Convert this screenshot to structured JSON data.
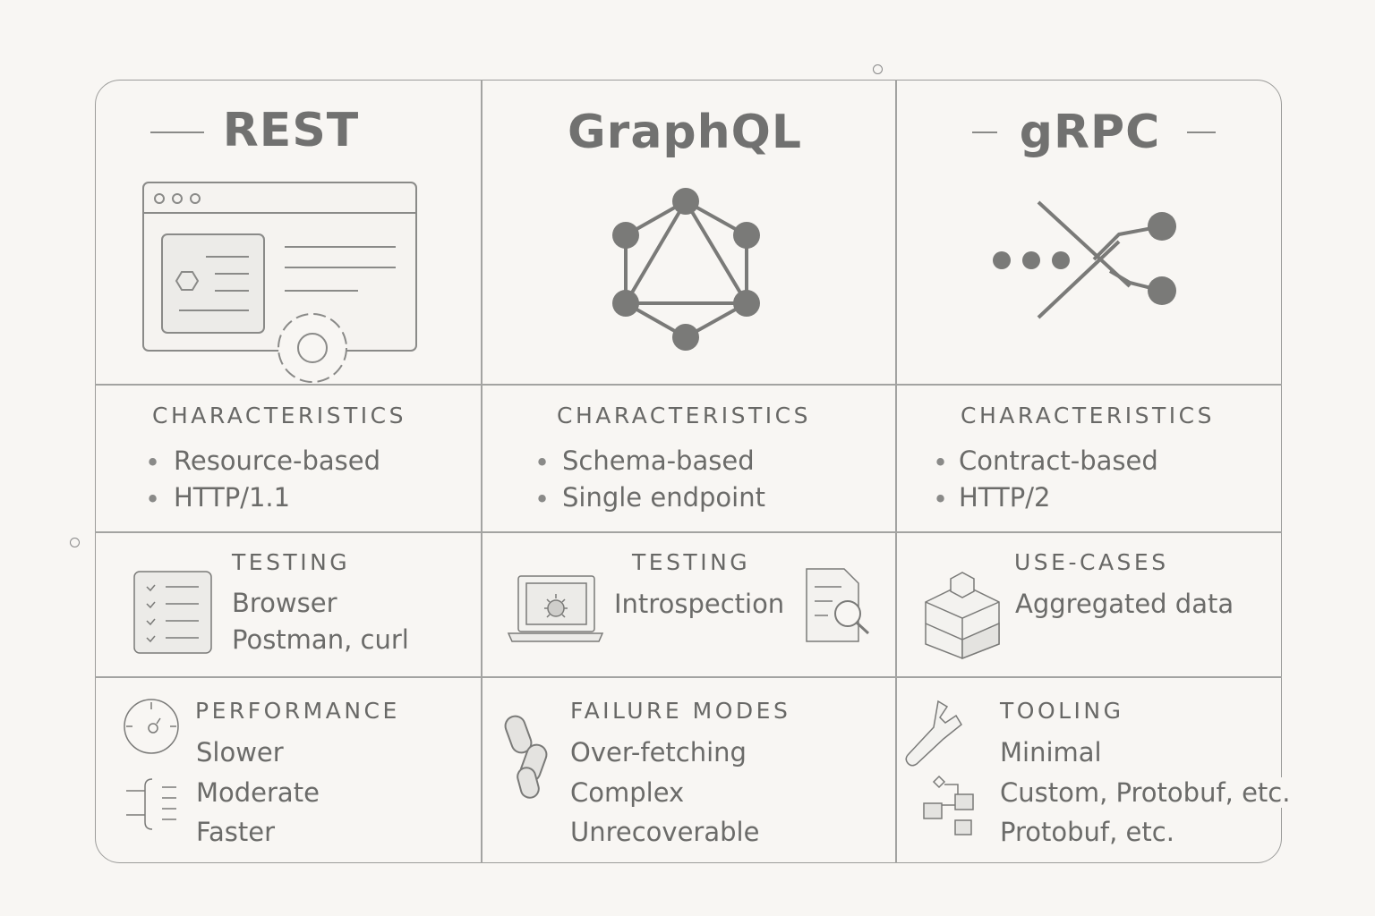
{
  "columns": [
    {
      "title": "REST",
      "icon": "browser-window-gear-icon"
    },
    {
      "title": "GraphQL",
      "icon": "graphql-logo-icon"
    },
    {
      "title": "gRPC",
      "icon": "grpc-arrows-icon"
    }
  ],
  "characteristics": {
    "label": "CHARACTERISTICS",
    "rest": [
      "Resource-based",
      "HTTP/1.1"
    ],
    "graphql": [
      "Schema-based",
      "Single endpoint"
    ],
    "grpc": [
      "Contract-based",
      "HTTP/2"
    ]
  },
  "row3": {
    "rest": {
      "label": "TESTING",
      "items": [
        "Browser",
        "Postman, curl"
      ],
      "icon": "checklist-icon"
    },
    "graphql": {
      "label": "TESTING",
      "items": [
        "Introspection"
      ],
      "icon": "laptop-bug-icon"
    },
    "grpc": {
      "label": "USE-CASES",
      "items": [
        "Aggregated data"
      ],
      "icon": "stacked-boxes-icon"
    }
  },
  "row4": {
    "rest": {
      "label": "PERFORMANCE",
      "items": [
        "Slower",
        "Moderate",
        "Faster"
      ],
      "icon": "gauge-icon"
    },
    "graphql": {
      "label": "FAILURE MODES",
      "items": [
        "Over-fetching",
        "Complex",
        "Unrecoverable"
      ],
      "icon": "broken-chain-icon"
    },
    "grpc": {
      "label": "TOOLING",
      "items": [
        "Minimal",
        "Custom, Protobuf, etc.",
        "Protobuf, etc."
      ],
      "icon": "wrench-icon"
    }
  },
  "colors": {
    "background": "#f8f6f3",
    "line": "#9c9c9a",
    "text": "#6b6b69",
    "icon_fill": "#7a7a78"
  }
}
